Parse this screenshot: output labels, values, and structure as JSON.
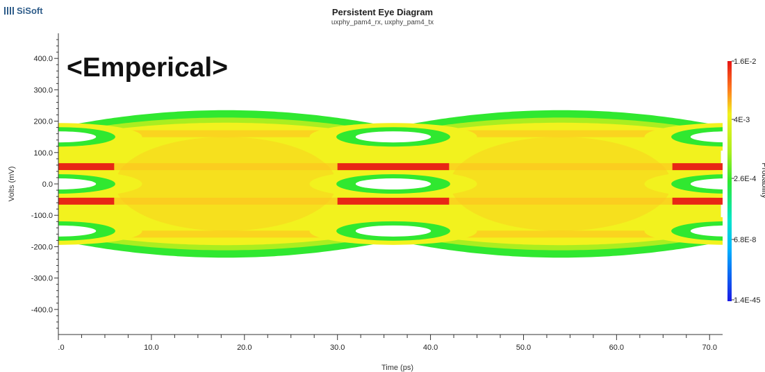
{
  "header": {
    "logo_text": "SiSoft",
    "title": "Persistent Eye Diagram",
    "subtitle": "uxphy_pam4_rx, uxphy_pam4_tx"
  },
  "annotation": "<Emperical>",
  "chart_data": {
    "type": "heatmap",
    "title": "Persistent Eye Diagram",
    "subtitle": "uxphy_pam4_rx, uxphy_pam4_tx",
    "xlabel": "Time (ps)",
    "ylabel": "Volts (mV)",
    "colorbar_label": "Probability",
    "xlim": [
      0,
      71.4
    ],
    "ylim": [
      -480,
      480
    ],
    "x_ticks": [
      {
        "value": 0,
        "label": ".0"
      },
      {
        "value": 10,
        "label": "10.0"
      },
      {
        "value": 20,
        "label": "20.0"
      },
      {
        "value": 30,
        "label": "30.0"
      },
      {
        "value": 40,
        "label": "40.0"
      },
      {
        "value": 50,
        "label": "50.0"
      },
      {
        "value": 60,
        "label": "60.0"
      },
      {
        "value": 70,
        "label": "70.0"
      }
    ],
    "y_ticks": [
      {
        "value": 400,
        "label": "400.0"
      },
      {
        "value": 300,
        "label": "300.0"
      },
      {
        "value": 200,
        "label": "200.0"
      },
      {
        "value": 100,
        "label": "100.0"
      },
      {
        "value": 0,
        "label": "0.0"
      },
      {
        "value": -100,
        "label": "-100.0"
      },
      {
        "value": -200,
        "label": "-200.0"
      },
      {
        "value": -300,
        "label": "-300.0"
      },
      {
        "value": -400,
        "label": "-400.0"
      }
    ],
    "colorbar_ticks": [
      "1.6E-2",
      "4E-3",
      "2.6E-4",
      "6.8E-8",
      "1.4E-45"
    ],
    "colorscale": [
      "#1a1ae6",
      "#00b4ff",
      "#00e6c8",
      "#30e830",
      "#aaee20",
      "#f2f21e",
      "#ffc020",
      "#ff7d1e",
      "#e61414"
    ],
    "eye_crossings_ps": [
      0,
      36,
      72
    ],
    "eye_openings_mv": [
      150,
      0,
      -150
    ],
    "signal_levels_mv": [
      160,
      55,
      -55,
      -160
    ],
    "envelope_mv": {
      "max": 235,
      "min": -235
    },
    "grid": false
  }
}
